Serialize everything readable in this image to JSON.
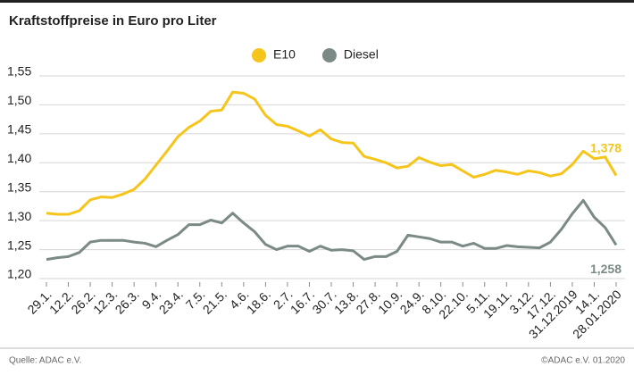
{
  "chart_data": {
    "type": "line",
    "title": "Kraftstoffpreise in Euro pro Liter",
    "categories": [
      "29.1.",
      null,
      "12.2.",
      null,
      "26.2.",
      null,
      "12.3.",
      null,
      "26.3.",
      null,
      "9.4.",
      null,
      "23.4.",
      null,
      "7.5.",
      null,
      "21.5.",
      null,
      "4.6.",
      null,
      "18.6.",
      null,
      "2.7.",
      null,
      "16.7.",
      null,
      "30.7.",
      null,
      "13.8.",
      null,
      "27.8.",
      null,
      "10.9.",
      null,
      "24.9.",
      null,
      "8.10.",
      null,
      "22.10.",
      null,
      "5.11.",
      null,
      "19.11.",
      null,
      "3.12.",
      null,
      "17.12.",
      null,
      "31.12.2019",
      null,
      "14.1.",
      null,
      "28.01.2020"
    ],
    "series": [
      {
        "name": "E10",
        "color": "#f5c51c",
        "values": [
          1.313,
          1.311,
          1.311,
          1.317,
          1.336,
          1.341,
          1.34,
          1.346,
          1.354,
          1.372,
          1.396,
          1.42,
          1.445,
          1.461,
          1.472,
          1.489,
          1.491,
          1.522,
          1.52,
          1.51,
          1.482,
          1.466,
          1.463,
          1.455,
          1.446,
          1.457,
          1.441,
          1.435,
          1.434,
          1.411,
          1.406,
          1.4,
          1.391,
          1.394,
          1.409,
          1.401,
          1.395,
          1.397,
          1.386,
          1.375,
          1.38,
          1.387,
          1.384,
          1.38,
          1.386,
          1.383,
          1.377,
          1.381,
          1.397,
          1.42,
          1.407,
          1.41,
          1.378
        ],
        "value_labels": [
          null,
          null,
          null,
          null,
          null,
          null,
          null,
          null,
          null,
          null,
          null,
          null,
          null,
          null,
          null,
          null,
          null,
          null,
          null,
          null,
          null,
          null,
          null,
          null,
          null,
          null,
          null,
          null,
          null,
          null,
          null,
          null,
          null,
          null,
          null,
          null,
          null,
          null,
          null,
          null,
          null,
          null,
          null,
          null,
          null,
          null,
          null,
          null,
          null,
          null,
          null,
          null,
          "1,378"
        ]
      },
      {
        "name": "Diesel",
        "color": "#7b8a86",
        "values": [
          1.233,
          1.236,
          1.238,
          1.245,
          1.263,
          1.266,
          1.266,
          1.266,
          1.263,
          1.261,
          1.255,
          1.266,
          1.276,
          1.293,
          1.293,
          1.301,
          1.296,
          1.313,
          1.296,
          1.281,
          1.259,
          1.25,
          1.256,
          1.256,
          1.247,
          1.256,
          1.249,
          1.25,
          1.248,
          1.233,
          1.238,
          1.238,
          1.247,
          1.275,
          1.272,
          1.269,
          1.263,
          1.263,
          1.256,
          1.261,
          1.252,
          1.252,
          1.257,
          1.255,
          1.254,
          1.253,
          1.263,
          1.285,
          1.312,
          1.335,
          1.306,
          1.288,
          1.258
        ],
        "value_labels": [
          null,
          null,
          null,
          null,
          null,
          null,
          null,
          null,
          null,
          null,
          null,
          null,
          null,
          null,
          null,
          null,
          null,
          null,
          null,
          null,
          null,
          null,
          null,
          null,
          null,
          null,
          null,
          null,
          null,
          null,
          null,
          null,
          null,
          null,
          null,
          null,
          null,
          null,
          null,
          null,
          null,
          null,
          null,
          null,
          null,
          null,
          null,
          null,
          null,
          null,
          null,
          null,
          "1,258"
        ]
      }
    ],
    "ylim": [
      1.2,
      1.55
    ],
    "yticks": [
      {
        "value": 1.2,
        "label": "1,20"
      },
      {
        "value": 1.25,
        "label": "1,25"
      },
      {
        "value": 1.3,
        "label": "1,30"
      },
      {
        "value": 1.35,
        "label": "1,35"
      },
      {
        "value": 1.4,
        "label": "1,40"
      },
      {
        "value": 1.45,
        "label": "1,45"
      },
      {
        "value": 1.5,
        "label": "1,50"
      },
      {
        "value": 1.55,
        "label": "1,55"
      }
    ],
    "grid": true,
    "legend": "top",
    "source": "Quelle: ADAC e.V.",
    "credit": "©ADAC e.V. 01.2020"
  }
}
